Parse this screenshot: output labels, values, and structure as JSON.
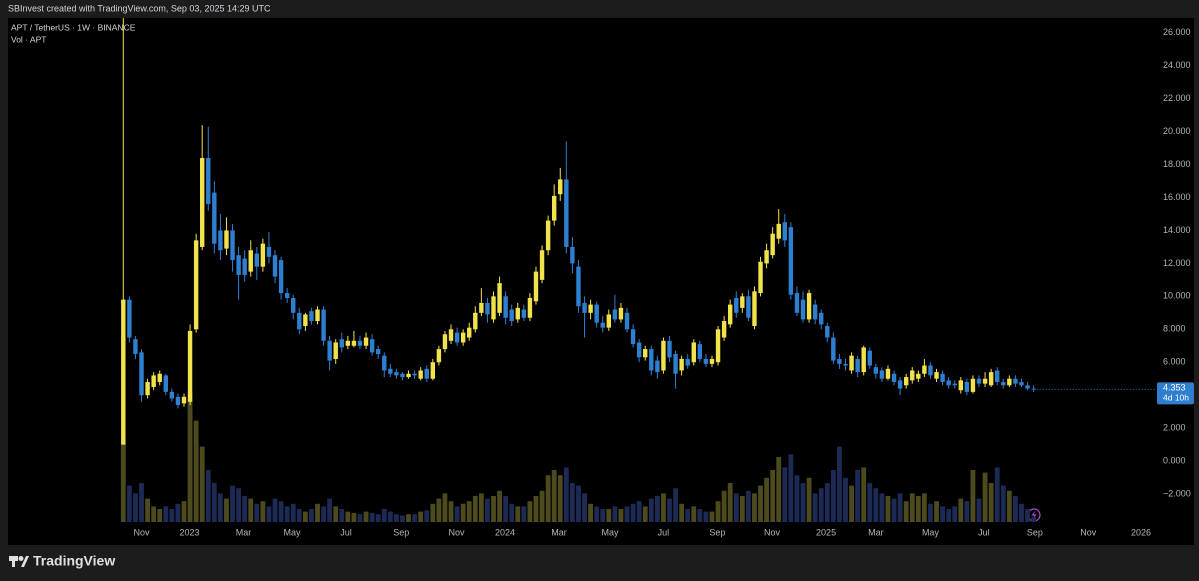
{
  "chart_data": {
    "type": "candlestick",
    "header": "SBInvest created with TradingView.com, Sep 03, 2025 14:29 UTC",
    "title": "APT / TetherUS · 1W · BINANCE",
    "volume_label": "Vol · APT",
    "brand": "TradingView",
    "up_color": "#f2e34c",
    "down_color": "#2f7fd1",
    "volume_up_color": "#4d4b1d",
    "volume_down_color": "#1c2a55",
    "grid": false,
    "ylim": [
      -3.7,
      26.9
    ],
    "yticks": [
      {
        "value": 26,
        "label": "26.000"
      },
      {
        "value": 24,
        "label": "24.000"
      },
      {
        "value": 22,
        "label": "22.000"
      },
      {
        "value": 20,
        "label": "20.000"
      },
      {
        "value": 18,
        "label": "18.000"
      },
      {
        "value": 16,
        "label": "16.000"
      },
      {
        "value": 14,
        "label": "14.000"
      },
      {
        "value": 12,
        "label": "12.000"
      },
      {
        "value": 10,
        "label": "10.000"
      },
      {
        "value": 8,
        "label": "8.000"
      },
      {
        "value": 6,
        "label": "6.000"
      },
      {
        "value": 2,
        "label": "2.000"
      },
      {
        "value": 0,
        "label": "0.000"
      },
      {
        "value": -2,
        "label": "−2.000"
      }
    ],
    "xlim": [
      -19,
      170
    ],
    "xticks": [
      {
        "value": 3,
        "label": "Nov"
      },
      {
        "value": 10.9,
        "label": "2023"
      },
      {
        "value": 19.8,
        "label": "Mar"
      },
      {
        "value": 27.8,
        "label": "May"
      },
      {
        "value": 36.7,
        "label": "Jul"
      },
      {
        "value": 45.8,
        "label": "Sep"
      },
      {
        "value": 54.9,
        "label": "Nov"
      },
      {
        "value": 62.9,
        "label": "2024"
      },
      {
        "value": 71.8,
        "label": "Mar"
      },
      {
        "value": 80.2,
        "label": "May"
      },
      {
        "value": 89,
        "label": "Jul"
      },
      {
        "value": 97.9,
        "label": "Sep"
      },
      {
        "value": 106.9,
        "label": "Nov"
      },
      {
        "value": 115.8,
        "label": "2025"
      },
      {
        "value": 124,
        "label": "Mar"
      },
      {
        "value": 133,
        "label": "May"
      },
      {
        "value": 141.8,
        "label": "Jul"
      },
      {
        "value": 150.2,
        "label": "Sep"
      },
      {
        "value": 159,
        "label": "Nov"
      },
      {
        "value": 167.7,
        "label": "2026"
      }
    ],
    "last_price": 4.353,
    "countdown": "4d 10h",
    "vlim": [
      0,
      100
    ],
    "candles": [
      [
        1.0,
        26.9,
        1.0,
        9.8
      ],
      [
        9.8,
        10.0,
        7.2,
        7.5
      ],
      [
        7.4,
        7.6,
        6.2,
        6.5
      ],
      [
        6.6,
        6.8,
        3.6,
        4.0
      ],
      [
        4.0,
        5.0,
        3.8,
        4.8
      ],
      [
        4.5,
        5.4,
        4.3,
        5.2
      ],
      [
        4.8,
        5.5,
        4.6,
        5.3
      ],
      [
        5.2,
        5.3,
        4.0,
        4.2
      ],
      [
        4.2,
        4.4,
        3.6,
        3.8
      ],
      [
        3.9,
        4.1,
        3.2,
        3.4
      ],
      [
        3.5,
        4.1,
        3.3,
        3.9
      ],
      [
        3.6,
        8.3,
        3.4,
        7.9
      ],
      [
        8.0,
        13.8,
        7.8,
        13.4
      ],
      [
        13.0,
        20.4,
        12.8,
        18.4
      ],
      [
        18.4,
        20.3,
        15.2,
        15.6
      ],
      [
        16.3,
        17.0,
        12.6,
        13.2
      ],
      [
        14.0,
        15.0,
        12.2,
        12.8
      ],
      [
        12.9,
        14.8,
        12.5,
        14.0
      ],
      [
        14.0,
        14.4,
        11.5,
        12.2
      ],
      [
        12.5,
        13.0,
        9.8,
        11.3
      ],
      [
        12.3,
        12.8,
        10.9,
        11.3
      ],
      [
        11.5,
        13.4,
        11.2,
        12.8
      ],
      [
        12.6,
        13.0,
        11.0,
        11.8
      ],
      [
        11.8,
        13.5,
        11.5,
        13.2
      ],
      [
        13.0,
        13.9,
        12.0,
        12.4
      ],
      [
        12.5,
        12.8,
        10.8,
        11.2
      ],
      [
        12.2,
        12.4,
        9.8,
        10.2
      ],
      [
        10.2,
        10.5,
        9.6,
        9.9
      ],
      [
        9.9,
        10.1,
        8.6,
        9.0
      ],
      [
        9.0,
        9.3,
        7.7,
        8.0
      ],
      [
        8.2,
        9.0,
        7.9,
        8.9
      ],
      [
        9.1,
        9.3,
        8.3,
        8.5
      ],
      [
        8.5,
        9.4,
        8.3,
        9.2
      ],
      [
        9.2,
        9.4,
        7.0,
        7.3
      ],
      [
        7.3,
        7.6,
        5.5,
        6.1
      ],
      [
        6.2,
        7.4,
        5.9,
        7.2
      ],
      [
        7.4,
        7.8,
        6.6,
        6.9
      ],
      [
        7.0,
        7.6,
        6.8,
        7.3
      ],
      [
        7.0,
        7.9,
        6.9,
        7.3
      ],
      [
        7.3,
        7.6,
        6.8,
        7.0
      ],
      [
        7.0,
        7.8,
        6.8,
        7.5
      ],
      [
        7.4,
        7.7,
        6.4,
        6.6
      ],
      [
        6.8,
        7.0,
        6.2,
        6.5
      ],
      [
        6.4,
        6.6,
        5.1,
        5.5
      ],
      [
        5.6,
        5.9,
        5.1,
        5.3
      ],
      [
        5.4,
        5.6,
        5.0,
        5.2
      ],
      [
        5.3,
        5.4,
        4.9,
        5.1
      ],
      [
        5.1,
        5.5,
        5.0,
        5.3
      ],
      [
        5.3,
        5.5,
        5.0,
        5.2
      ],
      [
        5.0,
        5.7,
        4.9,
        5.5
      ],
      [
        5.6,
        5.8,
        4.8,
        5.0
      ],
      [
        5.0,
        6.2,
        4.9,
        6.0
      ],
      [
        6.0,
        7.0,
        5.8,
        6.8
      ],
      [
        6.8,
        7.9,
        6.6,
        7.7
      ],
      [
        7.3,
        8.3,
        7.1,
        8.0
      ],
      [
        7.8,
        8.1,
        7.0,
        7.2
      ],
      [
        7.2,
        8.0,
        7.0,
        7.8
      ],
      [
        7.5,
        8.4,
        7.3,
        8.1
      ],
      [
        8.0,
        9.4,
        7.8,
        9.0
      ],
      [
        9.0,
        10.5,
        8.8,
        9.6
      ],
      [
        9.6,
        9.9,
        8.4,
        8.9
      ],
      [
        8.6,
        10.3,
        8.4,
        10.0
      ],
      [
        9.0,
        11.2,
        8.8,
        10.8
      ],
      [
        10.0,
        10.3,
        8.3,
        8.7
      ],
      [
        9.2,
        9.5,
        8.2,
        8.5
      ],
      [
        8.6,
        9.6,
        8.4,
        9.3
      ],
      [
        9.2,
        9.5,
        8.5,
        8.7
      ],
      [
        8.7,
        10.2,
        8.5,
        9.9
      ],
      [
        9.7,
        11.8,
        9.5,
        11.5
      ],
      [
        11.0,
        13.1,
        10.8,
        12.8
      ],
      [
        12.8,
        14.9,
        12.5,
        14.6
      ],
      [
        14.6,
        16.8,
        14.3,
        16.1
      ],
      [
        16.2,
        17.8,
        15.8,
        17.1
      ],
      [
        17.1,
        19.4,
        12.6,
        13.0
      ],
      [
        13.0,
        13.6,
        11.4,
        12.0
      ],
      [
        11.8,
        12.2,
        9.0,
        9.4
      ],
      [
        9.6,
        10.0,
        7.5,
        9.0
      ],
      [
        9.0,
        9.8,
        8.6,
        9.5
      ],
      [
        9.5,
        9.7,
        8.1,
        8.4
      ],
      [
        8.4,
        8.8,
        7.8,
        8.1
      ],
      [
        8.1,
        9.2,
        7.9,
        8.9
      ],
      [
        9.2,
        10.1,
        8.4,
        8.6
      ],
      [
        8.6,
        9.6,
        8.4,
        9.3
      ],
      [
        9.0,
        9.3,
        7.8,
        8.0
      ],
      [
        8.0,
        8.3,
        6.9,
        7.1
      ],
      [
        7.2,
        7.4,
        6.0,
        6.3
      ],
      [
        6.3,
        7.0,
        6.1,
        6.8
      ],
      [
        6.8,
        7.0,
        5.2,
        5.5
      ],
      [
        6.1,
        6.4,
        5.0,
        5.4
      ],
      [
        5.5,
        7.5,
        5.3,
        7.3
      ],
      [
        7.3,
        7.6,
        6.0,
        6.3
      ],
      [
        6.5,
        6.7,
        4.4,
        5.3
      ],
      [
        5.5,
        6.4,
        5.2,
        6.2
      ],
      [
        6.2,
        6.5,
        5.6,
        5.8
      ],
      [
        6.0,
        7.4,
        5.8,
        7.2
      ],
      [
        7.1,
        7.3,
        6.0,
        6.2
      ],
      [
        6.2,
        6.5,
        5.7,
        5.9
      ],
      [
        5.9,
        6.4,
        5.7,
        6.2
      ],
      [
        6.0,
        8.2,
        5.8,
        8.0
      ],
      [
        7.5,
        8.8,
        7.3,
        8.5
      ],
      [
        8.3,
        9.8,
        8.1,
        9.5
      ],
      [
        9.9,
        10.3,
        8.7,
        9.0
      ],
      [
        9.3,
        10.2,
        9.0,
        10.0
      ],
      [
        10.0,
        10.4,
        8.5,
        8.7
      ],
      [
        8.2,
        10.6,
        8.0,
        10.3
      ],
      [
        10.2,
        12.4,
        10.0,
        12.1
      ],
      [
        12.0,
        13.2,
        11.7,
        12.8
      ],
      [
        12.5,
        14.2,
        12.3,
        13.8
      ],
      [
        13.5,
        15.3,
        13.2,
        14.4
      ],
      [
        14.5,
        15.0,
        13.0,
        13.4
      ],
      [
        14.2,
        14.5,
        9.8,
        10.1
      ],
      [
        10.2,
        10.6,
        8.8,
        9.0
      ],
      [
        9.8,
        10.3,
        8.4,
        8.6
      ],
      [
        8.6,
        10.4,
        8.4,
        10.2
      ],
      [
        9.5,
        9.8,
        8.3,
        8.6
      ],
      [
        9.0,
        9.2,
        8.0,
        8.3
      ],
      [
        8.2,
        8.4,
        7.2,
        7.5
      ],
      [
        7.5,
        7.8,
        5.9,
        6.1
      ],
      [
        6.2,
        6.5,
        5.6,
        5.9
      ],
      [
        5.9,
        6.2,
        5.5,
        5.8
      ],
      [
        5.5,
        6.6,
        5.3,
        6.4
      ],
      [
        6.2,
        6.4,
        5.1,
        5.4
      ],
      [
        5.4,
        7.0,
        5.2,
        6.9
      ],
      [
        6.7,
        6.9,
        5.6,
        5.8
      ],
      [
        5.7,
        5.9,
        5.0,
        5.3
      ],
      [
        5.5,
        5.7,
        4.8,
        5.0
      ],
      [
        5.0,
        5.8,
        4.9,
        5.6
      ],
      [
        5.3,
        5.5,
        4.6,
        4.8
      ],
      [
        4.9,
        5.1,
        4.0,
        4.4
      ],
      [
        4.6,
        5.3,
        4.4,
        5.1
      ],
      [
        4.9,
        5.7,
        4.7,
        5.5
      ],
      [
        5.0,
        5.5,
        4.8,
        5.3
      ],
      [
        5.3,
        6.2,
        5.1,
        5.8
      ],
      [
        5.8,
        6.0,
        5.0,
        5.2
      ],
      [
        5.0,
        5.6,
        4.8,
        5.4
      ],
      [
        5.3,
        5.5,
        4.6,
        4.8
      ],
      [
        4.9,
        5.1,
        4.4,
        4.6
      ],
      [
        4.7,
        4.9,
        4.4,
        4.6
      ],
      [
        4.3,
        5.1,
        4.1,
        4.9
      ],
      [
        4.8,
        5.0,
        4.0,
        4.2
      ],
      [
        4.2,
        5.2,
        4.1,
        5.0
      ],
      [
        5.0,
        5.2,
        4.5,
        4.7
      ],
      [
        4.7,
        5.4,
        4.5,
        5.0
      ],
      [
        4.6,
        5.6,
        4.5,
        5.4
      ],
      [
        5.5,
        5.7,
        4.6,
        4.8
      ],
      [
        4.8,
        5.0,
        4.4,
        4.6
      ],
      [
        4.6,
        5.2,
        4.5,
        5.0
      ],
      [
        5.0,
        5.2,
        4.5,
        4.7
      ],
      [
        4.8,
        5.0,
        4.5,
        4.6
      ],
      [
        4.6,
        4.8,
        4.3,
        4.4
      ],
      [
        4.4,
        4.6,
        4.2,
        4.353
      ]
    ],
    "volume": [
      62,
      28,
      22,
      30,
      18,
      12,
      10,
      12,
      10,
      14,
      16,
      100,
      78,
      58,
      40,
      30,
      22,
      18,
      28,
      26,
      20,
      18,
      14,
      16,
      12,
      18,
      16,
      12,
      14,
      10,
      8,
      10,
      14,
      12,
      18,
      12,
      10,
      8,
      7,
      6,
      8,
      7,
      6,
      10,
      8,
      6,
      5,
      6,
      6,
      8,
      9,
      14,
      18,
      22,
      16,
      12,
      14,
      16,
      20,
      22,
      18,
      20,
      24,
      20,
      14,
      12,
      12,
      16,
      20,
      24,
      36,
      40,
      36,
      42,
      30,
      28,
      22,
      14,
      12,
      10,
      10,
      12,
      10,
      12,
      14,
      16,
      12,
      18,
      20,
      22,
      18,
      26,
      14,
      10,
      12,
      10,
      8,
      8,
      16,
      24,
      30,
      22,
      20,
      24,
      22,
      28,
      34,
      40,
      50,
      42,
      52,
      36,
      30,
      34,
      22,
      26,
      30,
      40,
      58,
      34,
      28,
      40,
      42,
      30,
      26,
      22,
      20,
      18,
      22,
      16,
      22,
      20,
      22,
      14,
      16,
      12,
      10,
      12,
      18,
      16,
      40,
      18,
      38,
      30,
      42,
      28,
      24,
      20,
      14,
      10,
      4
    ]
  }
}
